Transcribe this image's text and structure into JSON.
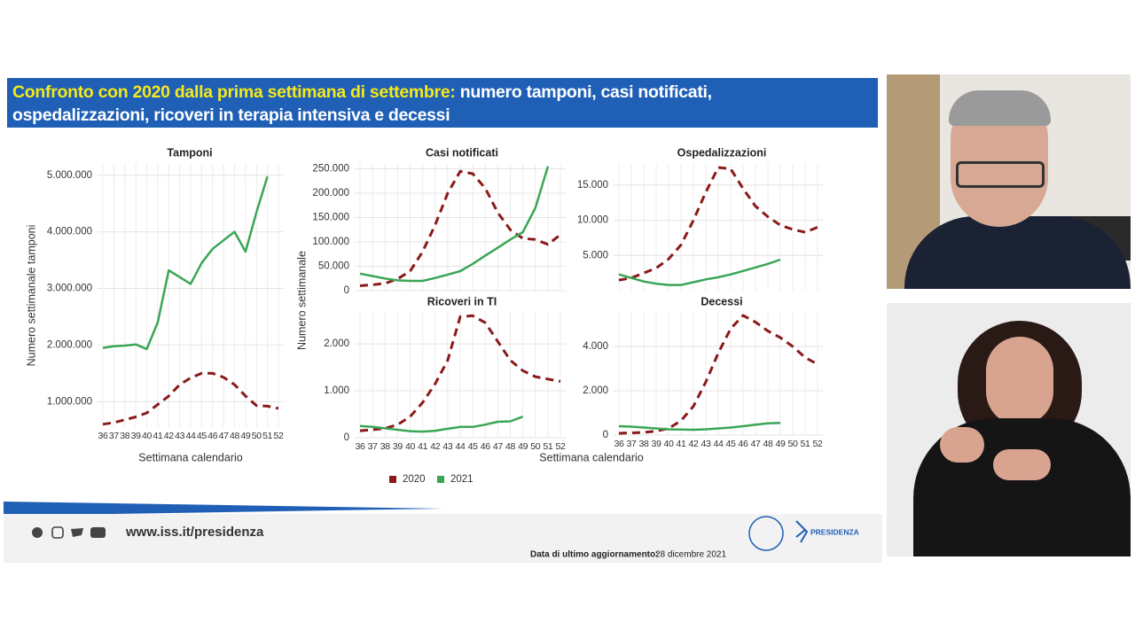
{
  "header": {
    "title_highlight": "Confronto con 2020 dalla prima settimana di settembre:",
    "title_rest": "numero tamponi, casi notificati, ospedalizzazioni, ricoveri in terapia intensiva e decessi"
  },
  "y_label": "Numero settimanale",
  "lower_x_label": "Settimana calendario",
  "footer": {
    "url": "www.iss.it/presidenza",
    "update_label": "Data di ultimo aggiornamento:",
    "update_date": "28 dicembre 2021",
    "logo_text": "PRESIDENZA"
  },
  "chart_data": [
    {
      "type": "line",
      "title": "Tamponi",
      "y_label": "Numero settimanale tamponi",
      "x_label": "Settimana calendario",
      "categories": [
        "36",
        "37",
        "38",
        "39",
        "40",
        "41",
        "42",
        "43",
        "44",
        "45",
        "46",
        "47",
        "48",
        "49",
        "50",
        "51",
        "52"
      ],
      "ylim": [
        550000,
        5200000
      ],
      "yticks": [
        {
          "value": 1000000,
          "label": "1.000.000"
        },
        {
          "value": 2000000,
          "label": "2.000.000"
        },
        {
          "value": 3000000,
          "label": "3.000.000"
        },
        {
          "value": 4000000,
          "label": "4.000.000"
        },
        {
          "value": 5000000,
          "label": "5.000.000"
        }
      ],
      "grid": true,
      "series": [
        {
          "name": "2020",
          "color": "#8b1a1a",
          "style": "dashed",
          "values": [
            600000,
            630000,
            680000,
            730000,
            800000,
            950000,
            1100000,
            1300000,
            1420000,
            1500000,
            1500000,
            1430000,
            1300000,
            1100000,
            930000,
            920000,
            880000
          ]
        },
        {
          "name": "2021",
          "color": "#3aa655",
          "style": "solid",
          "values": [
            1950000,
            1980000,
            1990000,
            2010000,
            1930000,
            2400000,
            3320000,
            3200000,
            3080000,
            3450000,
            3700000,
            3850000,
            4000000,
            3650000,
            4350000,
            4980000,
            null
          ]
        }
      ]
    },
    {
      "type": "line",
      "title": "Casi notificati",
      "ylim": [
        0,
        260000
      ],
      "yticks": [
        0,
        {
          "value": 50000,
          "label": "50.000"
        },
        {
          "value": 100000,
          "label": "100.000"
        },
        {
          "value": 150000,
          "label": "150.000"
        },
        {
          "value": 200000,
          "label": "200.000"
        },
        {
          "value": 250000,
          "label": "250.000"
        }
      ],
      "grid": true,
      "series": [
        {
          "name": "2020",
          "color": "#8b1a1a",
          "style": "dashed",
          "values": [
            10000,
            12000,
            15000,
            24000,
            40000,
            80000,
            135000,
            200000,
            245000,
            240000,
            210000,
            160000,
            125000,
            107000,
            105000,
            95000,
            115000
          ]
        },
        {
          "name": "2021",
          "color": "#3aa655",
          "style": "solid",
          "values": [
            35000,
            30000,
            25000,
            21000,
            20000,
            20000,
            26000,
            33000,
            40000,
            55000,
            72000,
            88000,
            105000,
            120000,
            170000,
            255000,
            null
          ]
        }
      ]
    },
    {
      "type": "line",
      "title": "Ospedalizzazioni",
      "ylim": [
        0,
        18000
      ],
      "yticks": [
        {
          "value": 5000,
          "label": "5.000"
        },
        {
          "value": 10000,
          "label": "10.000"
        },
        {
          "value": 15000,
          "label": "15.000"
        }
      ],
      "grid": true,
      "series": [
        {
          "name": "2020",
          "color": "#8b1a1a",
          "style": "dashed",
          "values": [
            1500,
            1800,
            2500,
            3200,
            4500,
            6500,
            10000,
            14000,
            17500,
            17300,
            14500,
            12000,
            10500,
            9300,
            8700,
            8300,
            9000
          ]
        },
        {
          "name": "2021",
          "color": "#3aa655",
          "style": "solid",
          "values": [
            2300,
            1800,
            1300,
            1000,
            800,
            800,
            1200,
            1600,
            1900,
            2300,
            2800,
            3300,
            3800,
            4400,
            null,
            null,
            null
          ]
        }
      ]
    },
    {
      "type": "line",
      "title": "Ricoveri in TI",
      "categories": [
        "36",
        "37",
        "38",
        "39",
        "40",
        "41",
        "42",
        "43",
        "44",
        "45",
        "46",
        "47",
        "48",
        "49",
        "50",
        "51",
        "52"
      ],
      "ylim": [
        0,
        2700
      ],
      "yticks": [
        0,
        {
          "value": 1000,
          "label": "1.000"
        },
        {
          "value": 2000,
          "label": "2.000"
        }
      ],
      "grid": true,
      "series": [
        {
          "name": "2020",
          "color": "#8b1a1a",
          "style": "dashed",
          "values": [
            150,
            170,
            200,
            280,
            450,
            750,
            1150,
            1650,
            2580,
            2600,
            2450,
            2050,
            1650,
            1430,
            1300,
            1250,
            1200
          ]
        },
        {
          "name": "2021",
          "color": "#3aa655",
          "style": "solid",
          "values": [
            250,
            230,
            200,
            170,
            140,
            130,
            150,
            190,
            230,
            230,
            280,
            340,
            350,
            450,
            null,
            null,
            null
          ]
        }
      ]
    },
    {
      "type": "line",
      "title": "Decessi",
      "categories": [
        "36",
        "37",
        "38",
        "39",
        "40",
        "41",
        "42",
        "43",
        "44",
        "45",
        "46",
        "47",
        "48",
        "49",
        "50",
        "51",
        "52"
      ],
      "ylim": [
        0,
        5600
      ],
      "yticks": [
        0,
        {
          "value": 2000,
          "label": "2.000"
        },
        {
          "value": 4000,
          "label": "4.000"
        }
      ],
      "grid": true,
      "series": [
        {
          "name": "2020",
          "color": "#8b1a1a",
          "style": "dashed",
          "values": [
            80,
            100,
            120,
            180,
            300,
            650,
            1300,
            2400,
            3700,
            4800,
            5400,
            5100,
            4700,
            4400,
            4000,
            3500,
            3200
          ]
        },
        {
          "name": "2021",
          "color": "#3aa655",
          "style": "solid",
          "values": [
            400,
            380,
            340,
            300,
            260,
            250,
            240,
            260,
            300,
            340,
            400,
            470,
            530,
            550,
            null,
            null,
            null
          ]
        }
      ]
    }
  ]
}
